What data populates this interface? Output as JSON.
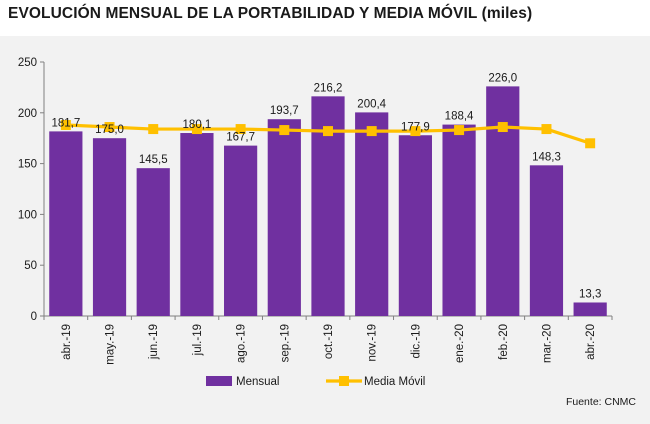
{
  "title": "EVOLUCIÓN MENSUAL DE LA PORTABILIDAD Y MEDIA MÓVIL (miles)",
  "source": "Fuente: CNMC",
  "colors": {
    "bar": "#7030a0",
    "line": "#ffc000",
    "axis": "#808080"
  },
  "chart_data": {
    "type": "bar",
    "categories": [
      "abr.-19",
      "may.-19",
      "jun.-19",
      "jul.-19",
      "ago.-19",
      "sep.-19",
      "oct.-19",
      "nov.-19",
      "dic.-19",
      "ene.-20",
      "feb.-20",
      "mar.-20",
      "abr.-20"
    ],
    "series": [
      {
        "name": "Mensual",
        "type": "bar",
        "values": [
          181.7,
          175.0,
          145.5,
          180.1,
          167.7,
          193.7,
          216.2,
          200.4,
          177.9,
          188.4,
          226.0,
          148.3,
          13.3
        ],
        "labels": [
          "181,7",
          "175,0",
          "145,5",
          "180,1",
          "167,7",
          "193,7",
          "216,2",
          "200,4",
          "177,9",
          "188,4",
          "226,0",
          "148,3",
          "13,3"
        ]
      },
      {
        "name": "Media Móvil",
        "type": "line",
        "values": [
          188,
          186,
          184,
          184,
          184,
          183,
          182,
          182,
          182,
          183,
          186,
          184,
          170
        ]
      }
    ],
    "yticks": [
      "0",
      "50",
      "100",
      "150",
      "200",
      "250"
    ],
    "ylim": [
      0,
      250
    ],
    "grid": false,
    "legend_position": "bottom"
  }
}
